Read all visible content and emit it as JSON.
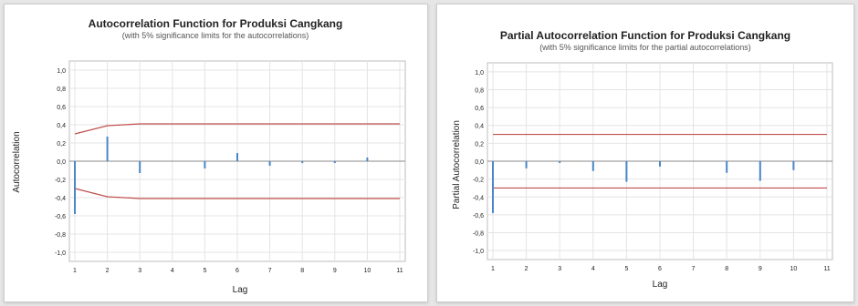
{
  "colors": {
    "bar": "#4a86c8",
    "limit": "#c0504d",
    "grid": "#e4e4e4",
    "frame": "#bdbdbd",
    "text": "#222222",
    "subtext": "#555555"
  },
  "chart_data": [
    {
      "type": "bar",
      "title": "Autocorrelation Function for Produksi Cangkang",
      "subtitle": "(with 5% significance limits for the autocorrelations)",
      "xlabel": "Lag",
      "ylabel": "Autocorrelation",
      "ylim": [
        -1.1,
        1.1
      ],
      "yticks": [
        "1,0",
        "0,8",
        "0,6",
        "0,4",
        "0,2",
        "0,0",
        "-0,2",
        "-0,4",
        "-0,6",
        "-0,8",
        "-1,0"
      ],
      "x": [
        1,
        2,
        3,
        4,
        5,
        6,
        7,
        8,
        9,
        10,
        11
      ],
      "values": [
        -0.58,
        0.27,
        -0.13,
        0.0,
        -0.08,
        0.09,
        -0.05,
        -0.02,
        -0.02,
        0.04,
        0.0
      ],
      "upper_limit": [
        0.3,
        0.39,
        0.41,
        0.41,
        0.41,
        0.41,
        0.41,
        0.41,
        0.41,
        0.41,
        0.41
      ],
      "lower_limit": [
        -0.3,
        -0.39,
        -0.41,
        -0.41,
        -0.41,
        -0.41,
        -0.41,
        -0.41,
        -0.41,
        -0.41,
        -0.41
      ],
      "grid": true
    },
    {
      "type": "bar",
      "title": "Partial Autocorrelation Function for Produksi Cangkang",
      "subtitle": "(with 5% significance limits for the partial autocorrelations)",
      "xlabel": "Lag",
      "ylabel": "Partial Autocorrelation",
      "ylim": [
        -1.1,
        1.1
      ],
      "yticks": [
        "1,0",
        "0,8",
        "0,6",
        "0,4",
        "0,2",
        "0,0",
        "-0,2",
        "-0,4",
        "-0,6",
        "-0,8",
        "-1,0"
      ],
      "x": [
        1,
        2,
        3,
        4,
        5,
        6,
        7,
        8,
        9,
        10,
        11
      ],
      "values": [
        -0.58,
        -0.08,
        -0.02,
        -0.11,
        -0.23,
        -0.06,
        0.0,
        -0.13,
        -0.22,
        -0.1,
        0.0
      ],
      "upper_limit": [
        0.3,
        0.3,
        0.3,
        0.3,
        0.3,
        0.3,
        0.3,
        0.3,
        0.3,
        0.3,
        0.3
      ],
      "lower_limit": [
        -0.3,
        -0.3,
        -0.3,
        -0.3,
        -0.3,
        -0.3,
        -0.3,
        -0.3,
        -0.3,
        -0.3,
        -0.3
      ],
      "grid": true
    }
  ]
}
